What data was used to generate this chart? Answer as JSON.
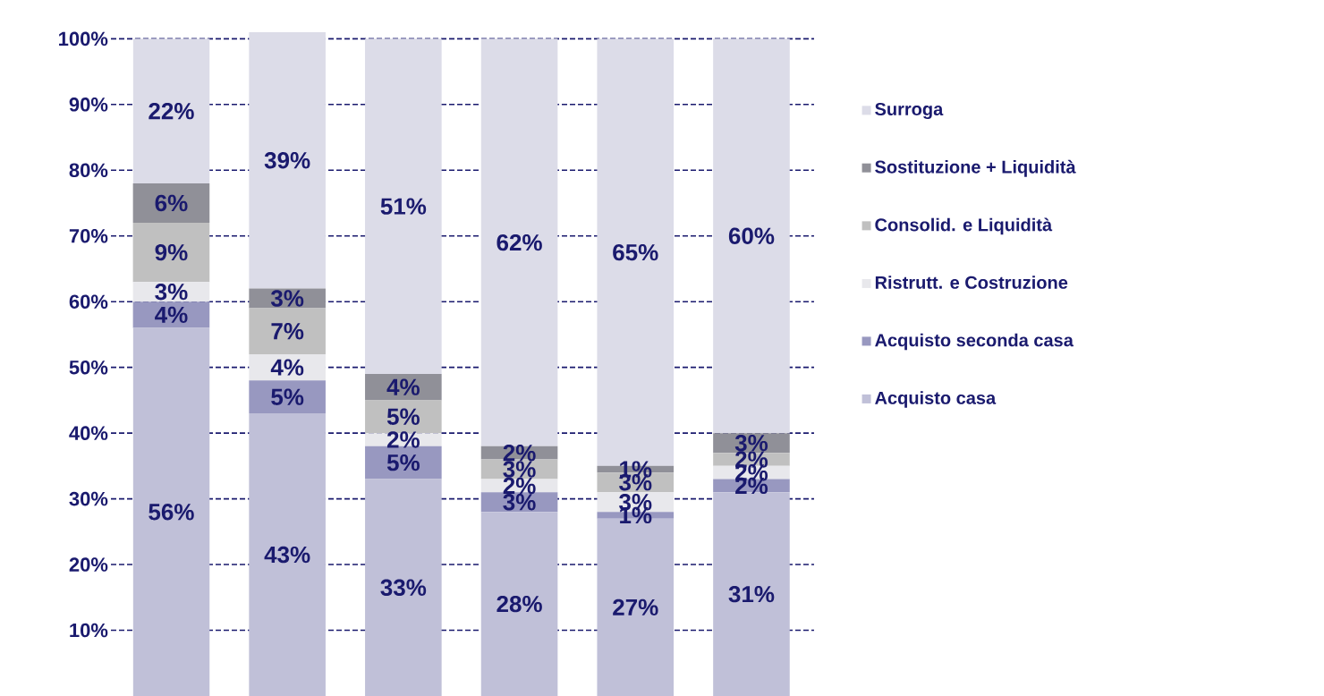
{
  "chart_data": {
    "type": "bar",
    "stacked": true,
    "categories": [
      null,
      null,
      null,
      null,
      null,
      null
    ],
    "ylim": [
      0,
      101
    ],
    "yticks": [
      {
        "value": 10,
        "label": "10%"
      },
      {
        "value": 20,
        "label": "20%"
      },
      {
        "value": 30,
        "label": "30%"
      },
      {
        "value": 40,
        "label": "40%"
      },
      {
        "value": 50,
        "label": "50%"
      },
      {
        "value": 60,
        "label": "60%"
      },
      {
        "value": 70,
        "label": "70%"
      },
      {
        "value": 80,
        "label": "80%"
      },
      {
        "value": 90,
        "label": "90%"
      },
      {
        "value": 100,
        "label": "100%"
      }
    ],
    "grid": "y",
    "legend": "right",
    "series": [
      {
        "name": "Acquisto casa",
        "color": "#c0c0d8",
        "values": [
          56,
          43,
          33,
          28,
          27,
          31
        ],
        "value_labels": [
          "56%",
          "43%",
          "33%",
          "28%",
          "27%",
          "31%"
        ]
      },
      {
        "name": "Acquisto seconda casa",
        "color": "#9898c0",
        "values": [
          4,
          5,
          5,
          3,
          1,
          2
        ],
        "value_labels": [
          "4%",
          "5%",
          "5%",
          "3%",
          "1%",
          "2%"
        ]
      },
      {
        "name": "Ristrutt. e Costruzione",
        "color": "#e8e8ec",
        "values": [
          3,
          4,
          2,
          2,
          3,
          2
        ],
        "value_labels": [
          "3%",
          "4%",
          "2%",
          "2%",
          "3%",
          "2%"
        ]
      },
      {
        "name": "Consolid. e Liquidità",
        "color": "#c0c0c0",
        "values": [
          9,
          7,
          5,
          3,
          3,
          2
        ],
        "value_labels": [
          "9%",
          "7%",
          "5%",
          "3%",
          "3%",
          "2%"
        ]
      },
      {
        "name": "Sostituzione + Liquidità",
        "color": "#909098",
        "values": [
          6,
          3,
          4,
          2,
          1,
          3
        ],
        "value_labels": [
          "6%",
          "3%",
          "4%",
          "2%",
          "1%",
          "3%"
        ]
      },
      {
        "name": "Surroga",
        "color": "#dcdce8",
        "values": [
          22,
          39,
          51,
          62,
          65,
          60
        ],
        "value_labels": [
          "22%",
          "39%",
          "51%",
          "62%",
          "65%",
          "60%"
        ]
      }
    ]
  }
}
